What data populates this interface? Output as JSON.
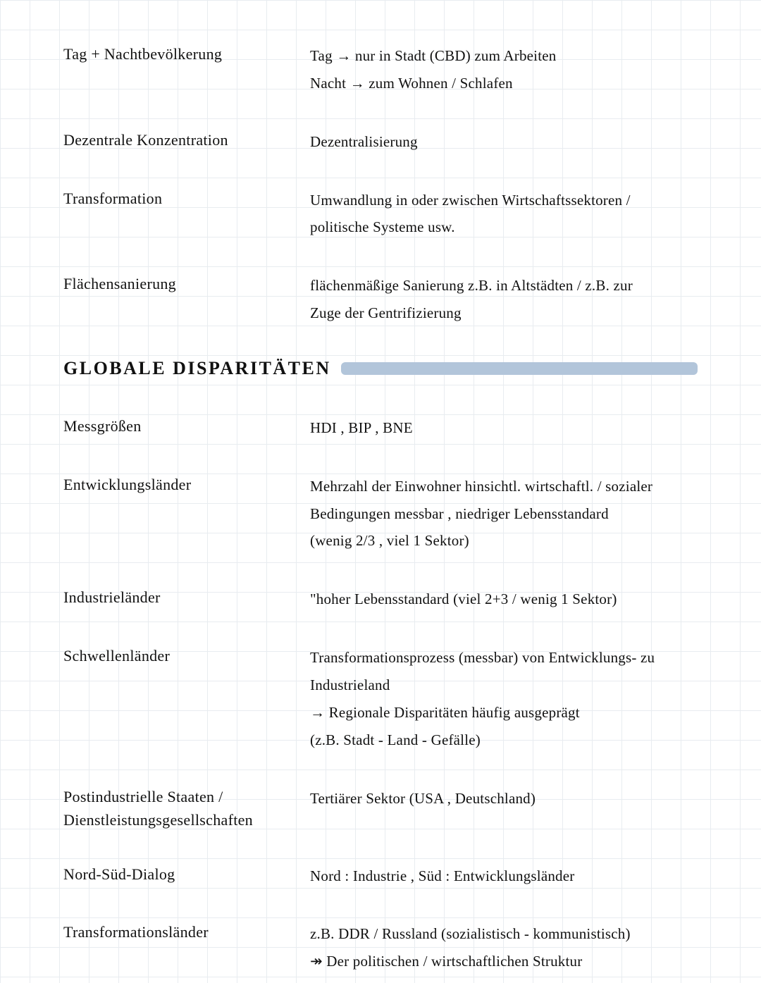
{
  "colors": {
    "ink": "#111111",
    "grid": "#e8ecf0",
    "background": "#ffffff",
    "highlight": "#b2c5da"
  },
  "entries_top": [
    {
      "term": "Tag + Nachtbevölkerung",
      "def": [
        "Tag → nur in Stadt  (CBD)  zum Arbeiten",
        "Nacht → zum  Wohnen  / Schlafen"
      ]
    },
    {
      "term": "Dezentrale  Konzentration",
      "def": [
        "Dezentralisierung"
      ]
    },
    {
      "term": "Transformation",
      "def": [
        "Umwandlung in oder zwischen Wirtschaftssektoren /",
        "politische Systeme usw."
      ]
    },
    {
      "term": "Flächensanierung",
      "def": [
        "flächenmäßige  Sanierung z.B. in Altstädten / z.B. zur",
        "Zuge der Gentrifizierung"
      ]
    }
  ],
  "heading": "GLOBALE DISPARITÄTEN",
  "entries_bottom": [
    {
      "term": "Messgrößen",
      "def": [
        "HDI , BIP , BNE"
      ]
    },
    {
      "term": "Entwicklungsländer",
      "def": [
        "Mehrzahl der Einwohner hinsichtl. wirtschaftl. / sozialer",
        "Bedingungen  messbar , niedriger Lebensstandard",
        "(wenig 2/3 , viel 1 Sektor)"
      ]
    },
    {
      "term": "Industrieländer",
      "def": [
        "\"hoher Lebensstandard  (viel 2+3 / wenig 1 Sektor)"
      ]
    },
    {
      "term": "Schwellenländer",
      "def": [
        "Transformationsprozess (messbar)  von Entwicklungs- zu",
        "Industrieland",
        "→ Regionale Disparitäten häufig ausgeprägt",
        "(z.B. Stadt - Land - Gefälle)"
      ]
    },
    {
      "term": "Postindustrielle Staaten / Dienstleistungsgesellschaften",
      "def": [
        "Tertiärer Sektor  (USA , Deutschland)"
      ]
    },
    {
      "term": "Nord-Süd-Dialog",
      "def": [
        "Nord : Industrie  ,  Süd : Entwicklungsländer"
      ]
    },
    {
      "term": "Transformationsländer",
      "def": [
        "z.B. DDR / Russland  (sozialistisch - kommunistisch)",
        "↠ Der politischen / wirtschaftlichen Struktur"
      ]
    }
  ]
}
